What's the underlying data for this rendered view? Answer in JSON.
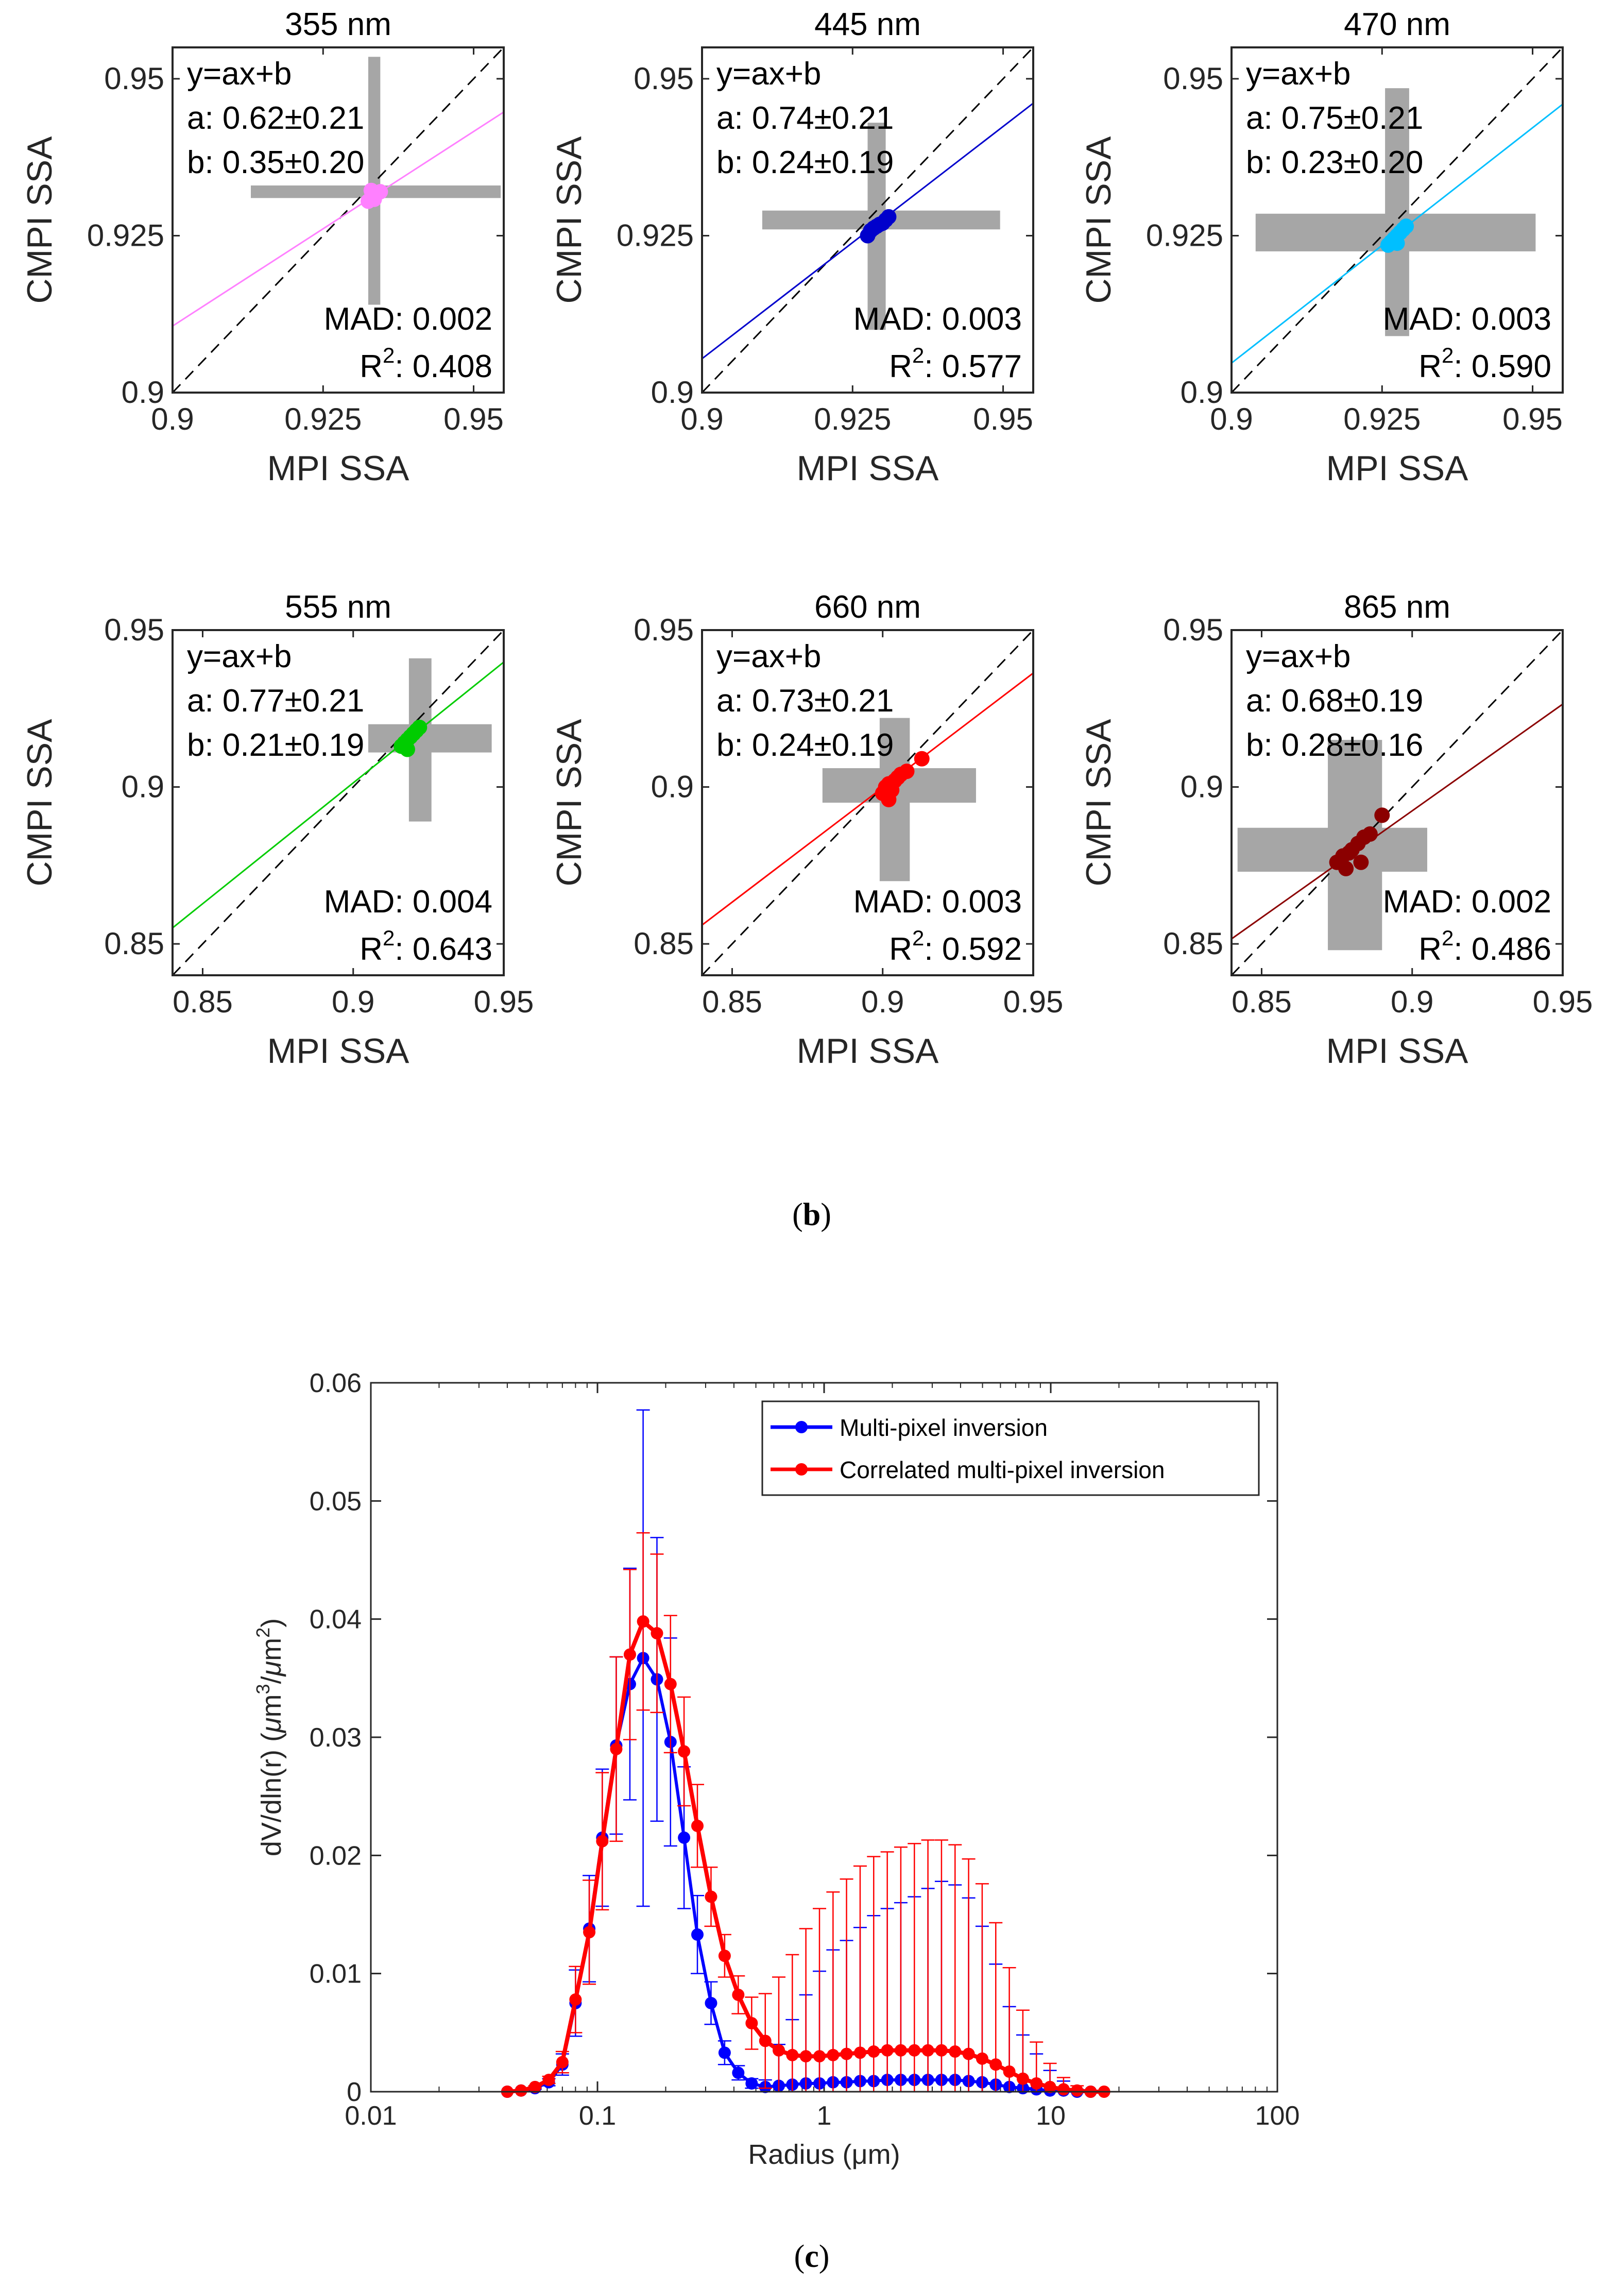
{
  "figure": {
    "caption_b_open": "(",
    "caption_b_letter": "b",
    "caption_b_close": ")",
    "caption_c_open": "(",
    "caption_c_letter": "c",
    "caption_c_close": ")"
  },
  "chart_data": [
    {
      "type": "scatter",
      "title": "355 nm",
      "xlabel": "MPI SSA",
      "ylabel": "CMPI SSA",
      "xlim": [
        0.9,
        0.955
      ],
      "ylim": [
        0.9,
        0.955
      ],
      "xticks": [
        0.9,
        0.925,
        0.95
      ],
      "yticks": [
        0.9,
        0.925,
        0.95
      ],
      "tick_labels": [
        "0.9",
        "0.925",
        "0.95"
      ],
      "color": "#ff80ff",
      "fit": {
        "eq": "y=ax+b",
        "a": "a: 0.62±0.21",
        "b": "b: 0.35±0.20",
        "slope": 0.62,
        "intercept": 0.3526
      },
      "mad": "MAD: 0.002",
      "r2_prefix": "R",
      "r2_sup": "2",
      "r2_value": ": 0.408",
      "points": [
        [
          0.9325,
          0.9305
        ],
        [
          0.933,
          0.931
        ],
        [
          0.9335,
          0.9315
        ],
        [
          0.934,
          0.9318
        ],
        [
          0.9345,
          0.932
        ],
        [
          0.933,
          0.9322
        ],
        [
          0.9335,
          0.9308
        ]
      ],
      "xerr_box": [
        0.913,
        0.9545,
        0.931,
        0.933
      ],
      "yerr_box": [
        0.9325,
        0.9345,
        0.914,
        0.9535
      ]
    },
    {
      "type": "scatter",
      "title": "445 nm",
      "xlabel": "MPI SSA",
      "ylabel": "CMPI SSA",
      "xlim": [
        0.9,
        0.955
      ],
      "ylim": [
        0.9,
        0.955
      ],
      "xticks": [
        0.9,
        0.925,
        0.95
      ],
      "yticks": [
        0.9,
        0.925,
        0.95
      ],
      "tick_labels": [
        "0.9",
        "0.925",
        "0.95"
      ],
      "color": "#0000cc",
      "fit": {
        "eq": "y=ax+b",
        "a": "a: 0.74±0.21",
        "b": "b: 0.24±0.19",
        "slope": 0.74,
        "intercept": 0.2394
      },
      "mad": "MAD: 0.003",
      "r2_prefix": "R",
      "r2_sup": "2",
      "r2_value": ": 0.577",
      "points": [
        [
          0.9275,
          0.925
        ],
        [
          0.928,
          0.9258
        ],
        [
          0.9285,
          0.9262
        ],
        [
          0.929,
          0.9265
        ],
        [
          0.9295,
          0.9268
        ],
        [
          0.93,
          0.927
        ],
        [
          0.9305,
          0.9275
        ],
        [
          0.931,
          0.928
        ]
      ],
      "xerr_box": [
        0.91,
        0.9495,
        0.926,
        0.929
      ],
      "yerr_box": [
        0.9275,
        0.9305,
        0.91,
        0.943
      ]
    },
    {
      "type": "scatter",
      "title": "470 nm",
      "xlabel": "MPI SSA",
      "ylabel": "CMPI SSA",
      "xlim": [
        0.9,
        0.955
      ],
      "ylim": [
        0.9,
        0.955
      ],
      "xticks": [
        0.9,
        0.925,
        0.95
      ],
      "yticks": [
        0.9,
        0.925,
        0.95
      ],
      "tick_labels": [
        "0.9",
        "0.925",
        "0.95"
      ],
      "color": "#00bfff",
      "fit": {
        "eq": "y=ax+b",
        "a": "a: 0.75±0.21",
        "b": "b: 0.23±0.20",
        "slope": 0.75,
        "intercept": 0.2297
      },
      "mad": "MAD: 0.003",
      "r2_prefix": "R",
      "r2_sup": "2",
      "r2_value": ": 0.590",
      "points": [
        [
          0.926,
          0.9235
        ],
        [
          0.9265,
          0.924
        ],
        [
          0.927,
          0.9245
        ],
        [
          0.9275,
          0.925
        ],
        [
          0.928,
          0.9255
        ],
        [
          0.9285,
          0.926
        ],
        [
          0.929,
          0.9265
        ],
        [
          0.9275,
          0.9238
        ]
      ],
      "xerr_box": [
        0.904,
        0.9505,
        0.9225,
        0.9285
      ],
      "yerr_box": [
        0.9255,
        0.9295,
        0.909,
        0.9485
      ]
    },
    {
      "type": "scatter",
      "title": "555 nm",
      "xlabel": "MPI SSA",
      "ylabel": "CMPI SSA",
      "xlim": [
        0.84,
        0.95
      ],
      "ylim": [
        0.84,
        0.95
      ],
      "xticks": [
        0.85,
        0.9,
        0.95
      ],
      "yticks": [
        0.85,
        0.9,
        0.95
      ],
      "tick_labels": [
        "0.85",
        "0.9",
        "0.95"
      ],
      "color": "#00cc00",
      "fit": {
        "eq": "y=ax+b",
        "a": "a: 0.77±0.21",
        "b": "b: 0.21±0.19",
        "slope": 0.77,
        "intercept": 0.2083
      },
      "mad": "MAD: 0.004",
      "r2_prefix": "R",
      "r2_sup": "2",
      "r2_value": ": 0.643",
      "points": [
        [
          0.916,
          0.913
        ],
        [
          0.917,
          0.914
        ],
        [
          0.918,
          0.915
        ],
        [
          0.919,
          0.916
        ],
        [
          0.92,
          0.917
        ],
        [
          0.921,
          0.918
        ],
        [
          0.922,
          0.919
        ],
        [
          0.918,
          0.912
        ]
      ],
      "xerr_box": [
        0.905,
        0.946,
        0.911,
        0.92
      ],
      "yerr_box": [
        0.9185,
        0.926,
        0.889,
        0.941
      ]
    },
    {
      "type": "scatter",
      "title": "660 nm",
      "xlabel": "MPI SSA",
      "ylabel": "CMPI SSA",
      "xlim": [
        0.84,
        0.95
      ],
      "ylim": [
        0.84,
        0.95
      ],
      "xticks": [
        0.85,
        0.9,
        0.95
      ],
      "yticks": [
        0.85,
        0.9,
        0.95
      ],
      "tick_labels": [
        "0.85",
        "0.9",
        "0.95"
      ],
      "color": "#ff0000",
      "fit": {
        "eq": "y=ax+b",
        "a": "a: 0.73±0.21",
        "b": "b: 0.24±0.19",
        "slope": 0.73,
        "intercept": 0.2428
      },
      "mad": "MAD: 0.003",
      "r2_prefix": "R",
      "r2_sup": "2",
      "r2_value": ": 0.592",
      "points": [
        [
          0.9,
          0.898
        ],
        [
          0.901,
          0.9
        ],
        [
          0.902,
          0.901
        ],
        [
          0.903,
          0.899
        ],
        [
          0.904,
          0.902
        ],
        [
          0.905,
          0.903
        ],
        [
          0.906,
          0.904
        ],
        [
          0.908,
          0.905
        ],
        [
          0.913,
          0.909
        ],
        [
          0.902,
          0.896
        ]
      ],
      "xerr_box": [
        0.88,
        0.931,
        0.895,
        0.906
      ],
      "yerr_box": [
        0.899,
        0.909,
        0.87,
        0.922
      ]
    },
    {
      "type": "scatter",
      "title": "865 nm",
      "xlabel": "MPI SSA",
      "ylabel": "CMPI SSA",
      "xlim": [
        0.84,
        0.95
      ],
      "ylim": [
        0.84,
        0.95
      ],
      "xticks": [
        0.85,
        0.9,
        0.95
      ],
      "yticks": [
        0.85,
        0.9,
        0.95
      ],
      "tick_labels": [
        "0.85",
        "0.9",
        "0.95"
      ],
      "color": "#8b0000",
      "fit": {
        "eq": "y=ax+b",
        "a": "a: 0.68±0.19",
        "b": "b: 0.28±0.16",
        "slope": 0.68,
        "intercept": 0.2804
      },
      "mad": "MAD: 0.002",
      "r2_prefix": "R",
      "r2_sup": "2",
      "r2_value": ": 0.486",
      "points": [
        [
          0.875,
          0.876
        ],
        [
          0.877,
          0.878
        ],
        [
          0.879,
          0.879
        ],
        [
          0.88,
          0.88
        ],
        [
          0.882,
          0.882
        ],
        [
          0.884,
          0.884
        ],
        [
          0.886,
          0.885
        ],
        [
          0.89,
          0.891
        ],
        [
          0.883,
          0.876
        ],
        [
          0.878,
          0.874
        ]
      ],
      "xerr_box": [
        0.842,
        0.905,
        0.873,
        0.887
      ],
      "yerr_box": [
        0.872,
        0.89,
        0.848,
        0.915
      ]
    },
    {
      "type": "line",
      "xscale": "log",
      "xlabel": "Radius (μm)",
      "ylabel_html": true,
      "ylabel_a": "dV/dln(r) (",
      "ylabel_mu1": "μ",
      "ylabel_b": "m",
      "ylabel_sup1": "3",
      "ylabel_c": "/",
      "ylabel_mu2": "μ",
      "ylabel_d": "m",
      "ylabel_sup2": "2",
      "ylabel_e": ")",
      "xlim": [
        0.01,
        100
      ],
      "ylim": [
        0,
        0.06
      ],
      "xticks": [
        0.01,
        0.1,
        1,
        10,
        100
      ],
      "xtick_labels": [
        "0.01",
        "0.1",
        "1",
        "10",
        "100"
      ],
      "yticks": [
        0,
        0.01,
        0.02,
        0.03,
        0.04,
        0.05,
        0.06
      ],
      "ytick_labels": [
        "0",
        "0.01",
        "0.02",
        "0.03",
        "0.04",
        "0.05",
        "0.06"
      ],
      "legend_position": "top-right",
      "series": [
        {
          "name": "Multi-pixel inversion",
          "color": "#0000ff",
          "x": [
            0.04,
            0.046,
            0.053,
            0.061,
            0.07,
            0.08,
            0.092,
            0.105,
            0.121,
            0.139,
            0.159,
            0.183,
            0.21,
            0.241,
            0.276,
            0.317,
            0.364,
            0.418,
            0.479,
            0.55,
            0.631,
            0.724,
            0.831,
            0.954,
            1.095,
            1.256,
            1.442,
            1.655,
            1.9,
            2.18,
            2.502,
            2.872,
            3.296,
            3.783,
            4.342,
            4.983,
            5.72,
            6.565,
            7.534,
            8.647,
            9.924,
            11.39,
            13.07,
            15.0
          ],
          "values": [
            0,
            0.0001,
            0.0003,
            0.0008,
            0.0023,
            0.0075,
            0.0138,
            0.0215,
            0.0293,
            0.0345,
            0.0367,
            0.0349,
            0.0296,
            0.0215,
            0.0133,
            0.0075,
            0.0033,
            0.0016,
            0.0007,
            0.0004,
            0.0005,
            0.0006,
            0.0007,
            0.0007,
            0.0008,
            0.0008,
            0.0009,
            0.0009,
            0.001,
            0.001,
            0.001,
            0.001,
            0.001,
            0.001,
            0.0009,
            0.0008,
            0.0006,
            0.0004,
            0.0003,
            0.0002,
            0.0001,
            0.0001,
            0,
            0
          ],
          "err": [
            0,
            0,
            0.0001,
            0.0003,
            0.0009,
            0.0028,
            0.0045,
            0.0058,
            0.0075,
            0.0098,
            0.021,
            0.012,
            0.0088,
            0.006,
            0.0033,
            0.0018,
            0.001,
            0.0006,
            0.0004,
            0.0006,
            0.0035,
            0.0055,
            0.0075,
            0.0095,
            0.0112,
            0.012,
            0.013,
            0.014,
            0.0145,
            0.015,
            0.0155,
            0.0162,
            0.0168,
            0.0165,
            0.0155,
            0.0132,
            0.0102,
            0.0068,
            0.0045,
            0.003,
            0.0017,
            0.0008,
            0.0002,
            0
          ]
        },
        {
          "name": "Correlated multi-pixel inversion",
          "color": "#ff0000",
          "x": [
            0.04,
            0.046,
            0.053,
            0.061,
            0.07,
            0.08,
            0.092,
            0.105,
            0.121,
            0.139,
            0.159,
            0.183,
            0.21,
            0.241,
            0.276,
            0.317,
            0.364,
            0.418,
            0.479,
            0.55,
            0.631,
            0.724,
            0.831,
            0.954,
            1.095,
            1.256,
            1.442,
            1.655,
            1.9,
            2.18,
            2.502,
            2.872,
            3.296,
            3.783,
            4.342,
            4.983,
            5.72,
            6.565,
            7.534,
            8.647,
            9.924,
            11.39,
            13.07,
            15.0,
            17.2
          ],
          "values": [
            0,
            0.0001,
            0.0004,
            0.001,
            0.0025,
            0.0078,
            0.0135,
            0.0212,
            0.029,
            0.037,
            0.0398,
            0.0388,
            0.0345,
            0.0288,
            0.0225,
            0.0165,
            0.0115,
            0.0082,
            0.0058,
            0.0043,
            0.0035,
            0.0031,
            0.003,
            0.003,
            0.0031,
            0.0032,
            0.0033,
            0.0034,
            0.0035,
            0.0035,
            0.0035,
            0.0035,
            0.0035,
            0.0034,
            0.0032,
            0.0028,
            0.0023,
            0.0017,
            0.0011,
            0.0007,
            0.0004,
            0.0002,
            0.0001,
            0,
            0
          ],
          "err": [
            0,
            0,
            0.0001,
            0.0003,
            0.0009,
            0.0028,
            0.0044,
            0.0058,
            0.0078,
            0.0072,
            0.0075,
            0.0067,
            0.0058,
            0.0046,
            0.0035,
            0.0025,
            0.0018,
            0.0016,
            0.0022,
            0.004,
            0.0062,
            0.0085,
            0.0108,
            0.0125,
            0.0138,
            0.0148,
            0.0158,
            0.0165,
            0.0168,
            0.0172,
            0.0175,
            0.0178,
            0.0178,
            0.0175,
            0.0165,
            0.0148,
            0.012,
            0.0088,
            0.0058,
            0.0035,
            0.002,
            0.001,
            0.0004,
            0.0001,
            0
          ]
        }
      ]
    }
  ]
}
